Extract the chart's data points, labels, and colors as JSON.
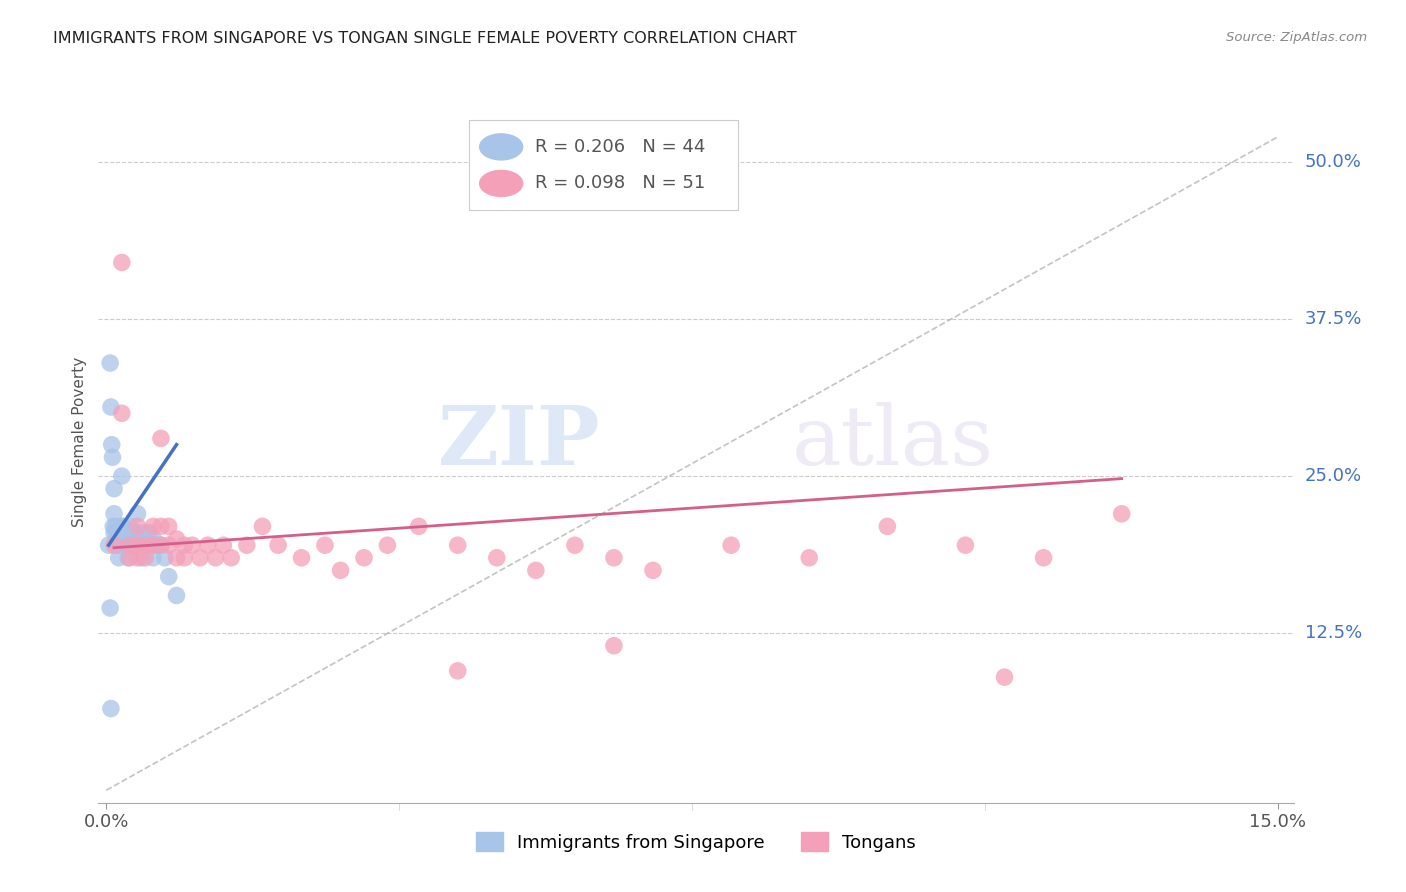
{
  "title": "IMMIGRANTS FROM SINGAPORE VS TONGAN SINGLE FEMALE POVERTY CORRELATION CHART",
  "source": "Source: ZipAtlas.com",
  "ylabel": "Single Female Poverty",
  "ytick_labels": [
    "50.0%",
    "37.5%",
    "25.0%",
    "12.5%"
  ],
  "ytick_values": [
    0.5,
    0.375,
    0.25,
    0.125
  ],
  "xlim": [
    0.0,
    0.15
  ],
  "ylim": [
    0.0,
    0.55
  ],
  "legend1_R": "0.206",
  "legend1_N": "44",
  "legend2_R": "0.098",
  "legend2_N": "51",
  "singapore_color": "#a8c4e8",
  "tongan_color": "#f4a0b8",
  "singapore_line_color": "#4472c4",
  "tongan_line_color": "#d45f8a",
  "watermark_zip": "ZIP",
  "watermark_atlas": "atlas",
  "singapore_x": [
    0.0003,
    0.0005,
    0.0006,
    0.0007,
    0.0008,
    0.0009,
    0.001,
    0.001,
    0.0012,
    0.0013,
    0.0014,
    0.0015,
    0.0016,
    0.0018,
    0.002,
    0.002,
    0.0022,
    0.0024,
    0.0025,
    0.0026,
    0.0028,
    0.003,
    0.003,
    0.0032,
    0.0035,
    0.0038,
    0.004,
    0.004,
    0.0042,
    0.0045,
    0.005,
    0.005,
    0.0055,
    0.006,
    0.006,
    0.0065,
    0.007,
    0.0075,
    0.008,
    0.009,
    0.0005,
    0.0006,
    0.001,
    0.002
  ],
  "singapore_y": [
    0.195,
    0.34,
    0.305,
    0.275,
    0.265,
    0.21,
    0.22,
    0.205,
    0.21,
    0.205,
    0.2,
    0.195,
    0.185,
    0.195,
    0.21,
    0.2,
    0.21,
    0.2,
    0.205,
    0.195,
    0.185,
    0.21,
    0.2,
    0.195,
    0.205,
    0.195,
    0.22,
    0.205,
    0.195,
    0.185,
    0.205,
    0.195,
    0.205,
    0.2,
    0.185,
    0.195,
    0.195,
    0.185,
    0.17,
    0.155,
    0.145,
    0.065,
    0.24,
    0.25
  ],
  "tongan_x": [
    0.001,
    0.002,
    0.002,
    0.003,
    0.003,
    0.004,
    0.004,
    0.004,
    0.005,
    0.005,
    0.006,
    0.006,
    0.007,
    0.007,
    0.007,
    0.008,
    0.008,
    0.009,
    0.009,
    0.01,
    0.01,
    0.011,
    0.012,
    0.013,
    0.014,
    0.015,
    0.016,
    0.018,
    0.02,
    0.022,
    0.025,
    0.028,
    0.03,
    0.033,
    0.036,
    0.04,
    0.045,
    0.05,
    0.055,
    0.06,
    0.065,
    0.07,
    0.08,
    0.09,
    0.1,
    0.11,
    0.12,
    0.13,
    0.045,
    0.065,
    0.115
  ],
  "tongan_y": [
    0.195,
    0.42,
    0.3,
    0.195,
    0.185,
    0.21,
    0.195,
    0.185,
    0.195,
    0.185,
    0.21,
    0.195,
    0.28,
    0.21,
    0.195,
    0.21,
    0.195,
    0.2,
    0.185,
    0.195,
    0.185,
    0.195,
    0.185,
    0.195,
    0.185,
    0.195,
    0.185,
    0.195,
    0.21,
    0.195,
    0.185,
    0.195,
    0.175,
    0.185,
    0.195,
    0.21,
    0.195,
    0.185,
    0.175,
    0.195,
    0.185,
    0.175,
    0.195,
    0.185,
    0.21,
    0.195,
    0.185,
    0.22,
    0.095,
    0.115,
    0.09
  ]
}
